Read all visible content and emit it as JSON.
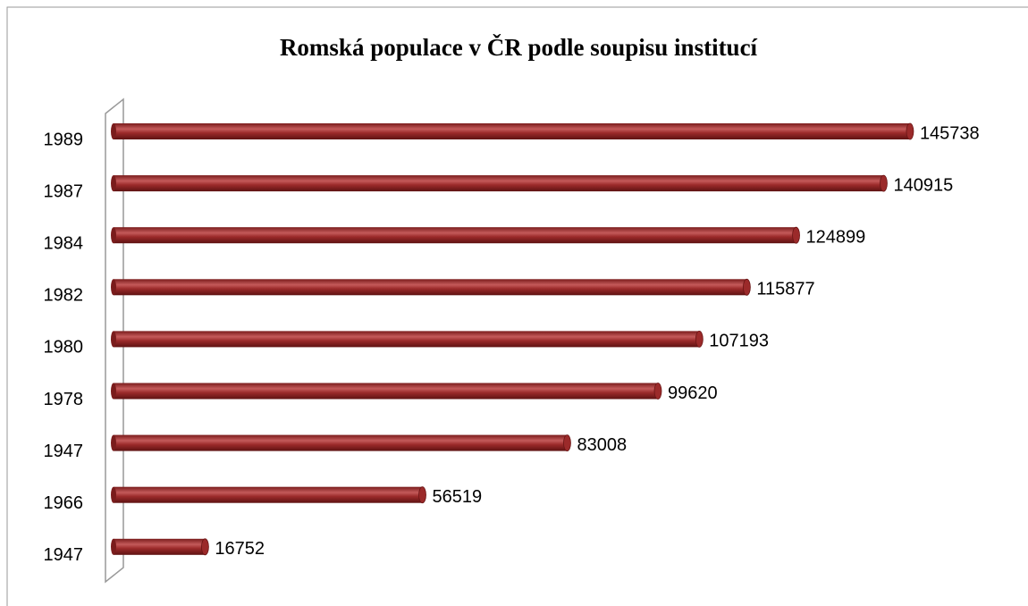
{
  "chart_data": {
    "type": "bar",
    "orientation": "horizontal",
    "title": "Romská populace v ČR podle soupisu institucí",
    "categories": [
      "1989",
      "1987",
      "1984",
      "1982",
      "1980",
      "1978",
      "1947",
      "1966",
      "1947"
    ],
    "values": [
      145738,
      140915,
      124899,
      115877,
      107193,
      99620,
      83008,
      56519,
      16752
    ],
    "color": "#9b2a2a",
    "xlim": [
      0,
      150000
    ]
  }
}
